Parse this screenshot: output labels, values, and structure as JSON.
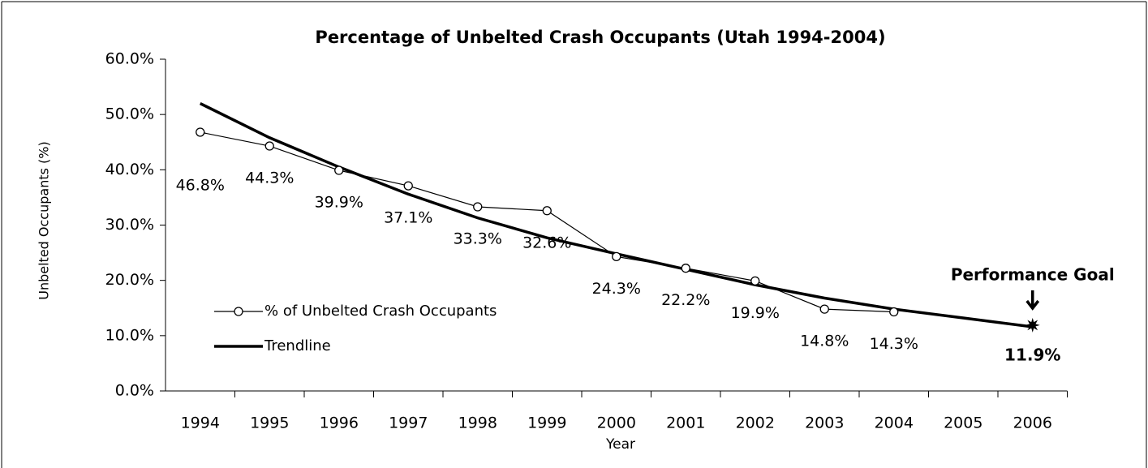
{
  "chart_data": {
    "type": "line",
    "title": "Percentage of Unbelted Crash Occupants (Utah 1994-2004)",
    "x_label": "Year",
    "y_label": "Unbelted Occupants (%)",
    "categories": [
      "1994",
      "1995",
      "1996",
      "1997",
      "1998",
      "1999",
      "2000",
      "2001",
      "2002",
      "2003",
      "2004",
      "2005",
      "2006"
    ],
    "series": [
      {
        "name": "% of Unbelted Crash Occupants",
        "color": "#000000",
        "marker": "circle",
        "values": [
          46.8,
          44.3,
          39.9,
          37.1,
          33.3,
          32.6,
          24.3,
          22.2,
          19.9,
          14.8,
          14.3,
          null,
          null
        ],
        "value_labels": [
          "46.8%",
          "44.3%",
          "39.9%",
          "37.1%",
          "33.3%",
          "32.6%",
          "24.3%",
          "22.2%",
          "19.9%",
          "14.8%",
          "14.3%",
          null,
          null
        ]
      },
      {
        "name": "Trendline",
        "color": "#000000",
        "values": [
          52.0,
          45.8,
          40.5,
          35.6,
          31.3,
          27.7,
          24.8,
          22.0,
          19.2,
          16.8,
          14.8,
          13.2,
          11.6
        ]
      }
    ],
    "annotation": {
      "text": "Performance Goal",
      "x": "2006",
      "value": 11.9,
      "value_label": "11.9%"
    },
    "ylim": [
      0,
      60
    ],
    "yticks": [
      {
        "value": 0,
        "label": "0.0%"
      },
      {
        "value": 10,
        "label": "10.0%"
      },
      {
        "value": 20,
        "label": "20.0%"
      },
      {
        "value": 30,
        "label": "30.0%"
      },
      {
        "value": 40,
        "label": "40.0%"
      },
      {
        "value": 50,
        "label": "50.0%"
      },
      {
        "value": 60,
        "label": "60.0%"
      }
    ],
    "legend": "lower left",
    "grid": false
  }
}
